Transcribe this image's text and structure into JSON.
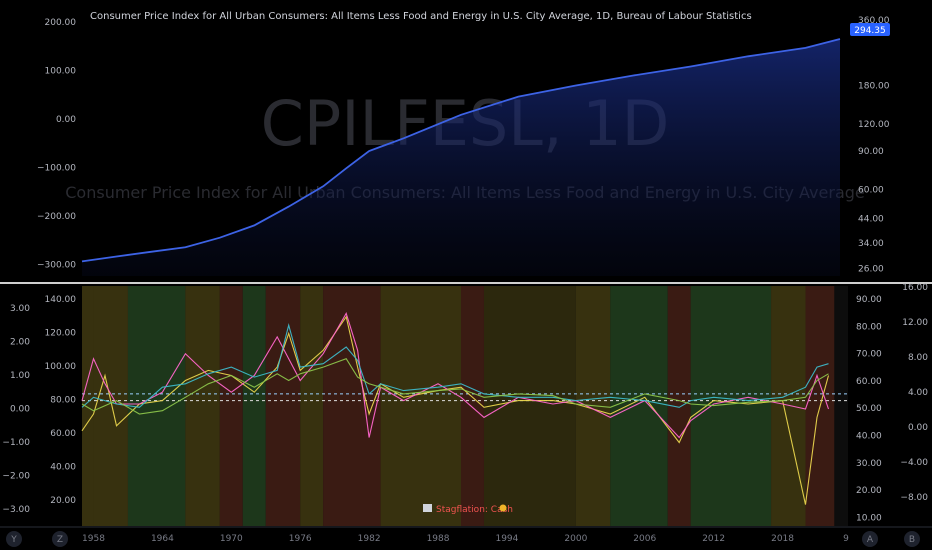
{
  "header": {
    "title": "Consumer Price Index for All Urban Consumers: All Items Less Food and Energy in U.S. City Average, 1D, Bureau of Labour Statistics",
    "watermark_symbol": "CPILFESL, 1D",
    "watermark_name": "Consumer Price Index for All Urban Consumers: All Items Less Food and Energy in U.S. City Average",
    "last_price": "294.35"
  },
  "colors": {
    "price_line": "#3d63e6",
    "recovery": "#1f3a1c",
    "overheat": "#3a3410",
    "stagflation": "#3d1c14",
    "reflation": "#2e2a0e",
    "label_badge": "#2962ff"
  },
  "regime_label": "Stagflation: Cash",
  "bottom_bar": {
    "left_keys": [
      "Y",
      "Z"
    ],
    "right_keys": [
      "A",
      "B"
    ],
    "cut_label": "9"
  },
  "chart_data": [
    {
      "type": "line",
      "title": "Consumer Price Index for All Urban Consumers: All Items Less Food and Energy in U.S. City Average, 1D, Bureau of Labour Statistics",
      "x": [
        1957,
        1960,
        1963,
        1966,
        1969,
        1972,
        1975,
        1978,
        1980,
        1982,
        1985,
        1990,
        1995,
        2000,
        2005,
        2010,
        2015,
        2020,
        2023
      ],
      "values": [
        28,
        29.5,
        31,
        32.5,
        36,
        41,
        50,
        62,
        75,
        90,
        103,
        132,
        160,
        180,
        200,
        220,
        245,
        268,
        294.35
      ],
      "y_scale": "log",
      "left_ticks": [
        "200.00",
        "100.00",
        "0.00",
        "−100.00",
        "−200.00",
        "−300.00"
      ],
      "right_ticks": [
        "360.00",
        "294.35",
        "180.00",
        "120.00",
        "90.00",
        "60.00",
        "44.00",
        "34.00",
        "26.00"
      ],
      "last_value": 294.35
    },
    {
      "type": "line",
      "x_ticks": [
        "1958",
        "1964",
        "1970",
        "1976",
        "1982",
        "1988",
        "1994",
        "2000",
        "2006",
        "2012",
        "2018"
      ],
      "left_ticks_inner": [
        "140.00",
        "120.00",
        "100.00",
        "80.00",
        "60.00",
        "40.00",
        "20.00"
      ],
      "left_ticks_outer": [
        "3.00",
        "2.00",
        "1.00",
        "0.00",
        "−1.00",
        "−2.00",
        "−3.00"
      ],
      "right_ticks_inner": [
        "90.00",
        "80.00",
        "70.00",
        "60.00",
        "50.00",
        "40.00",
        "30.00",
        "20.00",
        "10.00"
      ],
      "right_ticks_outer": [
        "16.00",
        "12.00",
        "8.00",
        "4.00",
        "0.00",
        "−4.00",
        "−8.00"
      ],
      "regimes": [
        {
          "from": 1957,
          "to": 1958,
          "type": "overheat"
        },
        {
          "from": 1958,
          "to": 1961,
          "type": "overheat"
        },
        {
          "from": 1961,
          "to": 1966,
          "type": "recovery"
        },
        {
          "from": 1966,
          "to": 1969,
          "type": "overheat"
        },
        {
          "from": 1969,
          "to": 1971,
          "type": "stagflation"
        },
        {
          "from": 1971,
          "to": 1973,
          "type": "recovery"
        },
        {
          "from": 1973,
          "to": 1976,
          "type": "stagflation"
        },
        {
          "from": 1976,
          "to": 1978,
          "type": "overheat"
        },
        {
          "from": 1978,
          "to": 1983,
          "type": "stagflation"
        },
        {
          "from": 1983,
          "to": 1990,
          "type": "overheat"
        },
        {
          "from": 1990,
          "to": 1992,
          "type": "stagflation"
        },
        {
          "from": 1992,
          "to": 2000,
          "type": "reflation"
        },
        {
          "from": 2000,
          "to": 2003,
          "type": "overheat"
        },
        {
          "from": 2003,
          "to": 2008,
          "type": "recovery"
        },
        {
          "from": 2008,
          "to": 2010,
          "type": "stagflation"
        },
        {
          "from": 2010,
          "to": 2017,
          "type": "recovery"
        },
        {
          "from": 2017,
          "to": 2020,
          "type": "overheat"
        },
        {
          "from": 2020,
          "to": 2022.5,
          "type": "stagflation"
        }
      ],
      "series": [
        {
          "color": "#e8d44d",
          "values": [
            [
              1957,
              62
            ],
            [
              1958,
              72
            ],
            [
              1959,
              95
            ],
            [
              1960,
              65
            ],
            [
              1962,
              78
            ],
            [
              1964,
              80
            ],
            [
              1966,
              92
            ],
            [
              1968,
              98
            ],
            [
              1970,
              95
            ],
            [
              1972,
              85
            ],
            [
              1974,
              100
            ],
            [
              1975,
              120
            ],
            [
              1976,
              98
            ],
            [
              1978,
              110
            ],
            [
              1980,
              130
            ],
            [
              1981,
              100
            ],
            [
              1982,
              72
            ],
            [
              1983,
              90
            ],
            [
              1985,
              82
            ],
            [
              1988,
              86
            ],
            [
              1990,
              88
            ],
            [
              1992,
              76
            ],
            [
              1995,
              80
            ],
            [
              1998,
              80
            ],
            [
              2000,
              78
            ],
            [
              2003,
              72
            ],
            [
              2006,
              82
            ],
            [
              2009,
              55
            ],
            [
              2010,
              70
            ],
            [
              2012,
              80
            ],
            [
              2015,
              78
            ],
            [
              2018,
              80
            ],
            [
              2020,
              18
            ],
            [
              2021,
              70
            ],
            [
              2022,
              95
            ]
          ]
        },
        {
          "color": "#ff66cc",
          "values": [
            [
              1957,
              80
            ],
            [
              1958,
              105
            ],
            [
              1959,
              90
            ],
            [
              1960,
              78
            ],
            [
              1962,
              78
            ],
            [
              1964,
              85
            ],
            [
              1966,
              108
            ],
            [
              1968,
              95
            ],
            [
              1970,
              85
            ],
            [
              1972,
              95
            ],
            [
              1974,
              118
            ],
            [
              1975,
              105
            ],
            [
              1976,
              92
            ],
            [
              1978,
              108
            ],
            [
              1980,
              132
            ],
            [
              1981,
              110
            ],
            [
              1982,
              58
            ],
            [
              1983,
              88
            ],
            [
              1985,
              80
            ],
            [
              1988,
              90
            ],
            [
              1990,
              82
            ],
            [
              1992,
              70
            ],
            [
              1995,
              82
            ],
            [
              1998,
              78
            ],
            [
              2000,
              80
            ],
            [
              2003,
              70
            ],
            [
              2006,
              80
            ],
            [
              2009,
              58
            ],
            [
              2010,
              68
            ],
            [
              2012,
              78
            ],
            [
              2015,
              82
            ],
            [
              2018,
              78
            ],
            [
              2020,
              75
            ],
            [
              2021,
              95
            ],
            [
              2022,
              75
            ]
          ]
        },
        {
          "color": "#3db8c8",
          "values": [
            [
              1957,
              76
            ],
            [
              1958,
              82
            ],
            [
              1960,
              78
            ],
            [
              1962,
              76
            ],
            [
              1964,
              88
            ],
            [
              1966,
              90
            ],
            [
              1968,
              96
            ],
            [
              1970,
              100
            ],
            [
              1972,
              94
            ],
            [
              1974,
              98
            ],
            [
              1975,
              125
            ],
            [
              1976,
              100
            ],
            [
              1978,
              102
            ],
            [
              1980,
              112
            ],
            [
              1981,
              104
            ],
            [
              1982,
              84
            ],
            [
              1983,
              90
            ],
            [
              1985,
              86
            ],
            [
              1988,
              88
            ],
            [
              1990,
              90
            ],
            [
              1992,
              84
            ],
            [
              1995,
              82
            ],
            [
              1998,
              82
            ],
            [
              2000,
              80
            ],
            [
              2003,
              82
            ],
            [
              2006,
              80
            ],
            [
              2009,
              76
            ],
            [
              2010,
              80
            ],
            [
              2012,
              82
            ],
            [
              2015,
              80
            ],
            [
              2018,
              82
            ],
            [
              2020,
              88
            ],
            [
              2021,
              100
            ],
            [
              2022,
              102
            ]
          ]
        },
        {
          "color": "#8bc34a",
          "values": [
            [
              1957,
              78
            ],
            [
              1958,
              74
            ],
            [
              1960,
              80
            ],
            [
              1962,
              72
            ],
            [
              1964,
              74
            ],
            [
              1966,
              82
            ],
            [
              1968,
              90
            ],
            [
              1970,
              95
            ],
            [
              1972,
              88
            ],
            [
              1974,
              96
            ],
            [
              1975,
              92
            ],
            [
              1976,
              96
            ],
            [
              1978,
              100
            ],
            [
              1980,
              105
            ],
            [
              1981,
              94
            ],
            [
              1982,
              90
            ],
            [
              1983,
              88
            ],
            [
              1985,
              84
            ],
            [
              1988,
              86
            ],
            [
              1990,
              87
            ],
            [
              1992,
              82
            ],
            [
              1995,
              84
            ],
            [
              1998,
              83
            ],
            [
              2000,
              78
            ],
            [
              2003,
              76
            ],
            [
              2006,
              84
            ],
            [
              2009,
              80
            ],
            [
              2010,
              78
            ],
            [
              2012,
              77
            ],
            [
              2015,
              79
            ],
            [
              2018,
              80
            ],
            [
              2020,
              82
            ],
            [
              2021,
              92
            ],
            [
              2022,
              96
            ]
          ]
        }
      ],
      "reference_lines": [
        80,
        84
      ]
    }
  ]
}
